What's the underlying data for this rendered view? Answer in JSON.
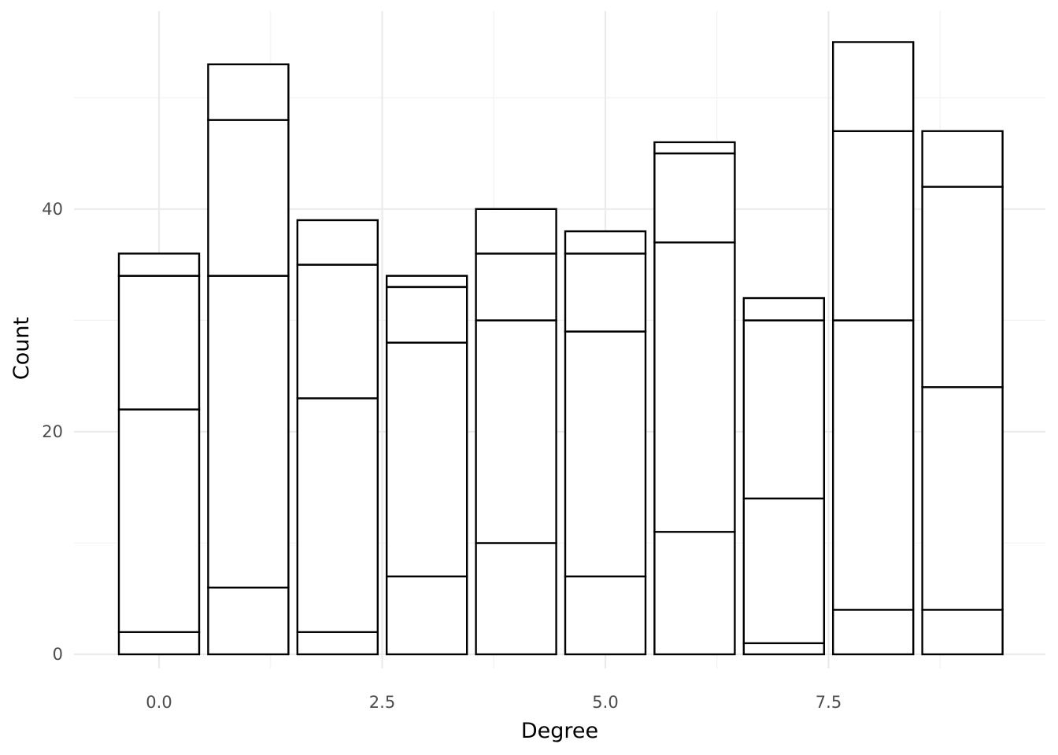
{
  "chart_data": {
    "type": "bar",
    "stacked": true,
    "title": "",
    "xlabel": "Degree",
    "ylabel": "Count",
    "x": [
      0,
      1,
      2,
      3,
      4,
      5,
      6,
      7,
      8,
      9
    ],
    "stack_boundaries": [
      [
        2,
        22,
        34,
        36
      ],
      [
        6,
        34,
        48,
        53
      ],
      [
        2,
        23,
        35,
        39
      ],
      [
        7,
        28,
        33,
        34
      ],
      [
        10,
        30,
        36,
        40
      ],
      [
        7,
        29,
        36,
        38
      ],
      [
        11,
        37,
        45,
        46
      ],
      [
        1,
        14,
        30,
        32
      ],
      [
        4,
        30,
        47,
        55
      ],
      [
        4,
        24,
        42,
        47
      ]
    ],
    "totals": [
      36,
      53,
      39,
      34,
      40,
      38,
      46,
      32,
      55,
      47
    ],
    "xlim": [
      -0.5,
      9.5
    ],
    "ylim": [
      0,
      55
    ],
    "x_ticks": [
      0,
      2.5,
      5,
      7.5
    ],
    "x_tick_labels": [
      "0.0",
      "2.5",
      "5.0",
      "7.5"
    ],
    "y_ticks": [
      0,
      20,
      40
    ],
    "y_tick_labels": [
      "0",
      "20",
      "40"
    ],
    "grid": true,
    "bar_fill": "#ffffff",
    "bar_stroke": "#000000",
    "grid_major_color": "#ebebeb",
    "grid_minor_color": "#f3f3f3"
  }
}
